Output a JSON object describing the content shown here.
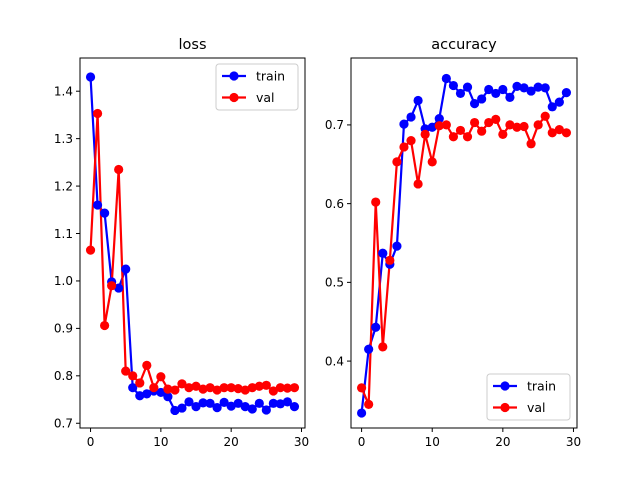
{
  "chart_data": [
    {
      "type": "line",
      "title": "loss",
      "xlabel": "",
      "ylabel": "",
      "xlim": [
        -1.5,
        30.5
      ],
      "ylim": [
        0.69,
        1.47
      ],
      "xticks": [
        0,
        10,
        20,
        30
      ],
      "yticks": [
        0.7,
        0.8,
        0.9,
        1.0,
        1.1,
        1.2,
        1.3,
        1.4
      ],
      "ytick_labels": [
        "0.7",
        "0.8",
        "0.9",
        "1.0",
        "1.1",
        "1.2",
        "1.3",
        "1.4"
      ],
      "legend_position": "top-right",
      "grid": false,
      "x": [
        0,
        1,
        2,
        3,
        4,
        5,
        6,
        7,
        8,
        9,
        10,
        11,
        12,
        13,
        14,
        15,
        16,
        17,
        18,
        19,
        20,
        21,
        22,
        23,
        24,
        25,
        26,
        27,
        28,
        29
      ],
      "series": [
        {
          "name": "train",
          "color": "#0000ff",
          "values": [
            1.43,
            1.16,
            1.143,
            0.998,
            0.985,
            1.025,
            0.775,
            0.758,
            0.762,
            0.768,
            0.765,
            0.756,
            0.727,
            0.732,
            0.745,
            0.735,
            0.743,
            0.742,
            0.733,
            0.744,
            0.736,
            0.742,
            0.735,
            0.73,
            0.742,
            0.728,
            0.742,
            0.741,
            0.745,
            0.735
          ]
        },
        {
          "name": "val",
          "color": "#ff0000",
          "values": [
            1.065,
            1.353,
            0.906,
            0.99,
            1.235,
            0.81,
            0.8,
            0.785,
            0.822,
            0.775,
            0.798,
            0.772,
            0.77,
            0.783,
            0.775,
            0.778,
            0.772,
            0.775,
            0.77,
            0.775,
            0.775,
            0.773,
            0.77,
            0.775,
            0.778,
            0.78,
            0.768,
            0.775,
            0.774,
            0.775
          ]
        }
      ]
    },
    {
      "type": "line",
      "title": "accuracy",
      "xlabel": "",
      "ylabel": "",
      "xlim": [
        -1.5,
        30.5
      ],
      "ylim": [
        0.315,
        0.785
      ],
      "xticks": [
        0,
        10,
        20,
        30
      ],
      "yticks": [
        0.4,
        0.5,
        0.6,
        0.7
      ],
      "ytick_labels": [
        "0.4",
        "0.5",
        "0.6",
        "0.7"
      ],
      "legend_position": "bottom-right",
      "grid": false,
      "x": [
        0,
        1,
        2,
        3,
        4,
        5,
        6,
        7,
        8,
        9,
        10,
        11,
        12,
        13,
        14,
        15,
        16,
        17,
        18,
        19,
        20,
        21,
        22,
        23,
        24,
        25,
        26,
        27,
        28,
        29
      ],
      "series": [
        {
          "name": "train",
          "color": "#0000ff",
          "values": [
            0.334,
            0.415,
            0.443,
            0.537,
            0.523,
            0.546,
            0.701,
            0.71,
            0.731,
            0.695,
            0.697,
            0.708,
            0.759,
            0.75,
            0.74,
            0.748,
            0.727,
            0.733,
            0.745,
            0.74,
            0.745,
            0.735,
            0.749,
            0.747,
            0.743,
            0.748,
            0.747,
            0.723,
            0.729,
            0.741
          ]
        },
        {
          "name": "val",
          "color": "#ff0000",
          "values": [
            0.366,
            0.345,
            0.602,
            0.418,
            0.528,
            0.653,
            0.672,
            0.68,
            0.625,
            0.688,
            0.653,
            0.699,
            0.7,
            0.685,
            0.693,
            0.685,
            0.703,
            0.692,
            0.703,
            0.707,
            0.688,
            0.7,
            0.697,
            0.698,
            0.676,
            0.7,
            0.711,
            0.69,
            0.694,
            0.69
          ]
        }
      ]
    }
  ]
}
